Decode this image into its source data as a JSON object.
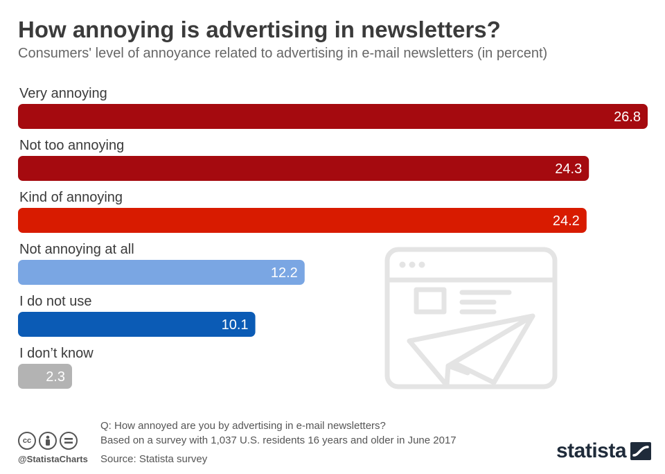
{
  "header": {
    "title": "How annoying is advertising in newsletters?",
    "subtitle": "Consumers' level of annoyance related to advertising in e-mail newsletters (in percent)"
  },
  "chart_data": {
    "type": "bar",
    "orientation": "horizontal",
    "title": "How annoying is advertising in newsletters?",
    "subtitle": "Consumers' level of annoyance related to advertising in e-mail newsletters (in percent)",
    "categories": [
      "Very annoying",
      "Not too annoying",
      "Kind of annoying",
      "Not annoying at all",
      "I do not use",
      "I don’t know"
    ],
    "values": [
      26.8,
      24.3,
      24.2,
      12.2,
      10.1,
      2.3
    ],
    "value_labels": [
      "26.8",
      "24.3",
      "24.2",
      "12.2",
      "10.1",
      "2.3"
    ],
    "colors": [
      "#a50a0f",
      "#a50a0f",
      "#d81b00",
      "#7aa6e3",
      "#0b5bb5",
      "#b3b3b3"
    ],
    "xlim": [
      0,
      26.8
    ],
    "grid": false,
    "legend": "none"
  },
  "footer": {
    "question": "Q: How annoyed are you by advertising in e-mail newsletters?",
    "basis": "Based on a survey with 1,037 U.S. residents 16 years and older in June 2017",
    "source": "Source: Statista survey",
    "handle": "@StatistaCharts",
    "logo_text": "statista"
  },
  "icons": {
    "illustration": "newsletter-paper-plane-icon",
    "license": [
      "creative-commons-icon",
      "attribution-icon",
      "no-derivatives-icon"
    ],
    "logo": "statista-logo-icon"
  }
}
